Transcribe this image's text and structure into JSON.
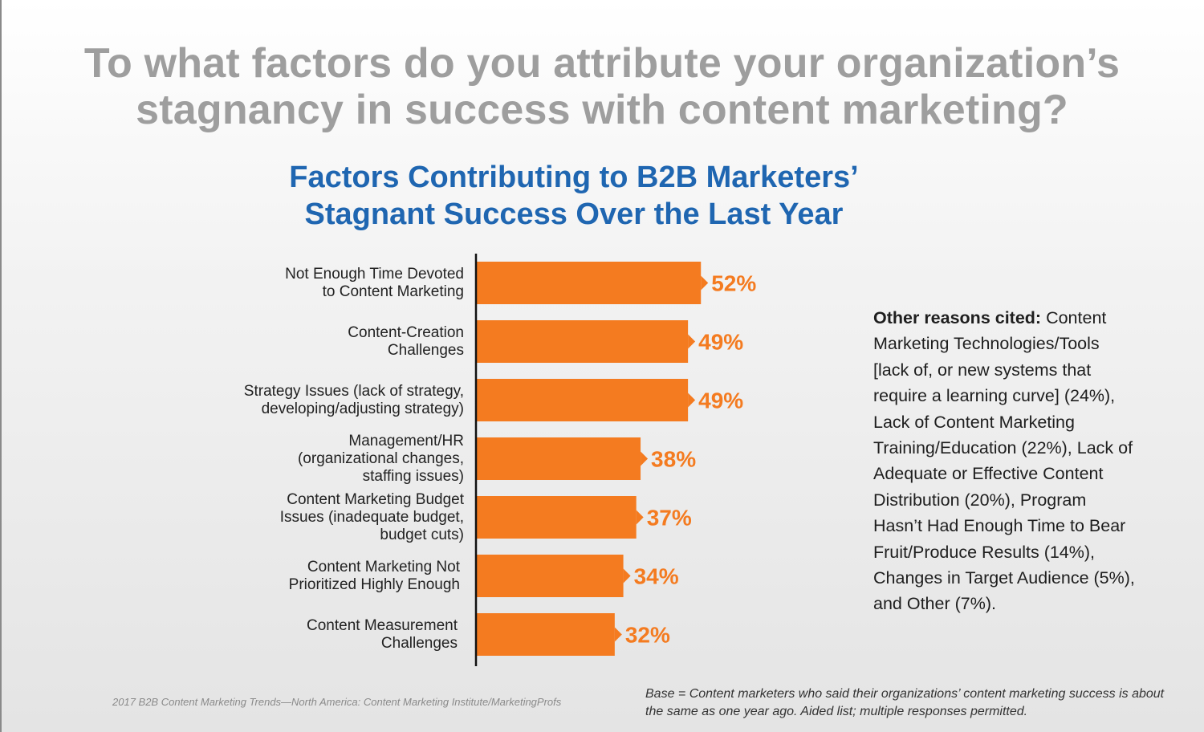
{
  "question": {
    "line1": "To what factors do you attribute your organization’s",
    "line2": "stagnancy in success with content marketing?"
  },
  "chart_data": {
    "type": "bar",
    "orientation": "horizontal",
    "title_line1": "Factors Contributing to B2B Marketers’",
    "title_line2": "Stagnant Success Over the Last Year",
    "categories": [
      [
        "Not Enough Time Devoted",
        "to Content Marketing"
      ],
      [
        "Content-Creation",
        "Challenges"
      ],
      [
        "Strategy Issues (lack of strategy,",
        "developing/adjusting strategy)"
      ],
      [
        "Management/HR",
        "(organizational changes,",
        "staffing issues)"
      ],
      [
        "Content Marketing Budget",
        "Issues (inadequate budget,",
        "budget cuts)"
      ],
      [
        "Content Marketing Not",
        "Prioritized Highly Enough"
      ],
      [
        "Content Measurement",
        "Challenges"
      ]
    ],
    "values": [
      52,
      49,
      49,
      38,
      37,
      34,
      32
    ],
    "value_labels": [
      "52%",
      "49%",
      "49%",
      "38%",
      "37%",
      "34%",
      "32%"
    ],
    "unit": "%",
    "bar_color": "#f47b20",
    "label_color": "#f47b20"
  },
  "other_reasons": {
    "heading": "Other reasons cited:",
    "text": " Content Marketing Technologies/Tools [lack of, or new systems that require a learning curve] (24%), Lack of Content Marketing Training/Education (22%), Lack of Adequate or Effective Content Distribution (20%), Program Hasn’t Had Enough Time to Bear Fruit/Produce Results (14%), Changes in Target Audience (5%), and Other (7%)."
  },
  "footer": {
    "source": "2017 B2B Content Marketing Trends—North America: Content Marketing Institute/MarketingProfs",
    "base": "Base = Content marketers who said their organizations’ content marketing success is about the same as one year ago. Aided list; multiple responses permitted."
  }
}
